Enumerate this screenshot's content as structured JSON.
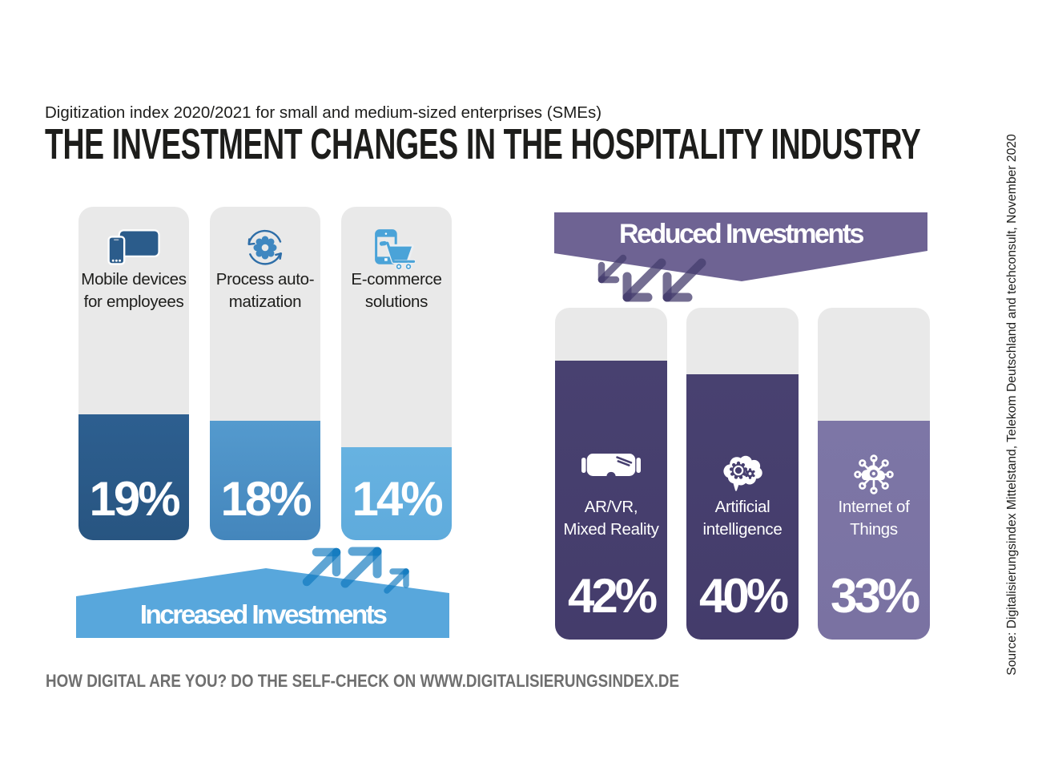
{
  "header": {
    "subtitle": "Digitization index 2020/2021 for small and medium-sized enterprises (SMEs)",
    "title": "THE INVESTMENT CHANGES IN THE HOSPITALITY INDUSTRY"
  },
  "footer": {
    "text": "HOW DIGITAL ARE YOU? DO THE SELF-CHECK ON WWW.DIGITALISIERUNGSINDEX.DE"
  },
  "source_note": "Source: Digitalisierungsindex Mittelstand, Telekom Deutschland and techconsult, November 2020",
  "chart_data": {
    "type": "bar",
    "unit": "%",
    "axis": "none",
    "max_track_percent": 50,
    "groups": [
      {
        "banner": "Increased Investments",
        "direction": "up",
        "accent": "#58a7dc",
        "bars": [
          {
            "label_lines": [
              "Mobile devices",
              "for employees"
            ],
            "value": 19,
            "value_label": "19%",
            "color": "#2b5c8b",
            "icon": "mobile-devices-icon"
          },
          {
            "label_lines": [
              "Process auto-",
              "matization"
            ],
            "value": 18,
            "value_label": "18%",
            "color": "#4b92c8",
            "icon": "process-automation-icon"
          },
          {
            "label_lines": [
              "E-commerce",
              "solutions"
            ],
            "value": 14,
            "value_label": "14%",
            "color": "#63b0e0",
            "icon": "ecommerce-cart-icon"
          }
        ]
      },
      {
        "banner": "Reduced Investments",
        "direction": "down",
        "accent": "#6e6393",
        "bars": [
          {
            "label_lines": [
              "AR/VR,",
              "Mixed Reality"
            ],
            "value": 42,
            "value_label": "42%",
            "color": "#463f6f",
            "icon": "vr-headset-icon"
          },
          {
            "label_lines": [
              "Artificial",
              "intelligence"
            ],
            "value": 40,
            "value_label": "40%",
            "color": "#463f6f",
            "icon": "ai-brain-icon"
          },
          {
            "label_lines": [
              "Internet of",
              "Things"
            ],
            "value": 33,
            "value_label": "33%",
            "color": "#7c74a5",
            "icon": "iot-network-icon"
          }
        ]
      }
    ]
  }
}
